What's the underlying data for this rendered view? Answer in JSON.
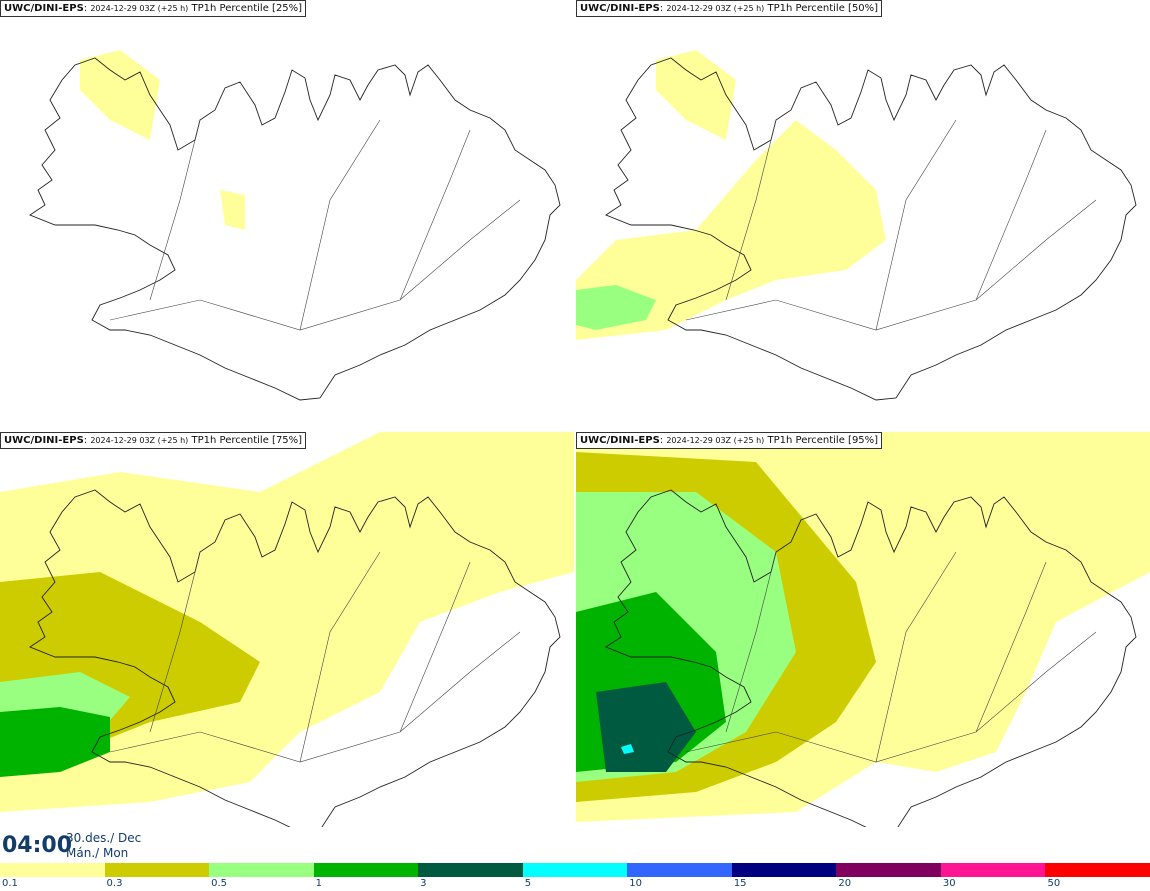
{
  "model": "UWC/DINI-EPS",
  "run": "2024-12-29 03Z (+25 h)",
  "panels": [
    {
      "variable": "TP1h Percentile",
      "percentile": "[25%]"
    },
    {
      "variable": "TP1h Percentile",
      "percentile": "[50%]"
    },
    {
      "variable": "TP1h Percentile",
      "percentile": "[75%]"
    },
    {
      "variable": "TP1h Percentile",
      "percentile": "[95%]"
    }
  ],
  "valid_time": "04:00",
  "date_line1": "30.des./ Dec",
  "date_line2": "Mán./ Mon",
  "legend": {
    "ticks": [
      "0.1",
      "0.3",
      "0.5",
      "1",
      "3",
      "5",
      "10",
      "15",
      "20",
      "30",
      "50"
    ],
    "colors": [
      "#ffff99",
      "#cccc00",
      "#99ff80",
      "#00b300",
      "#005a40",
      "#00ffff",
      "#3366ff",
      "#000080",
      "#800060",
      "#ff1493",
      "#ff0000"
    ]
  }
}
